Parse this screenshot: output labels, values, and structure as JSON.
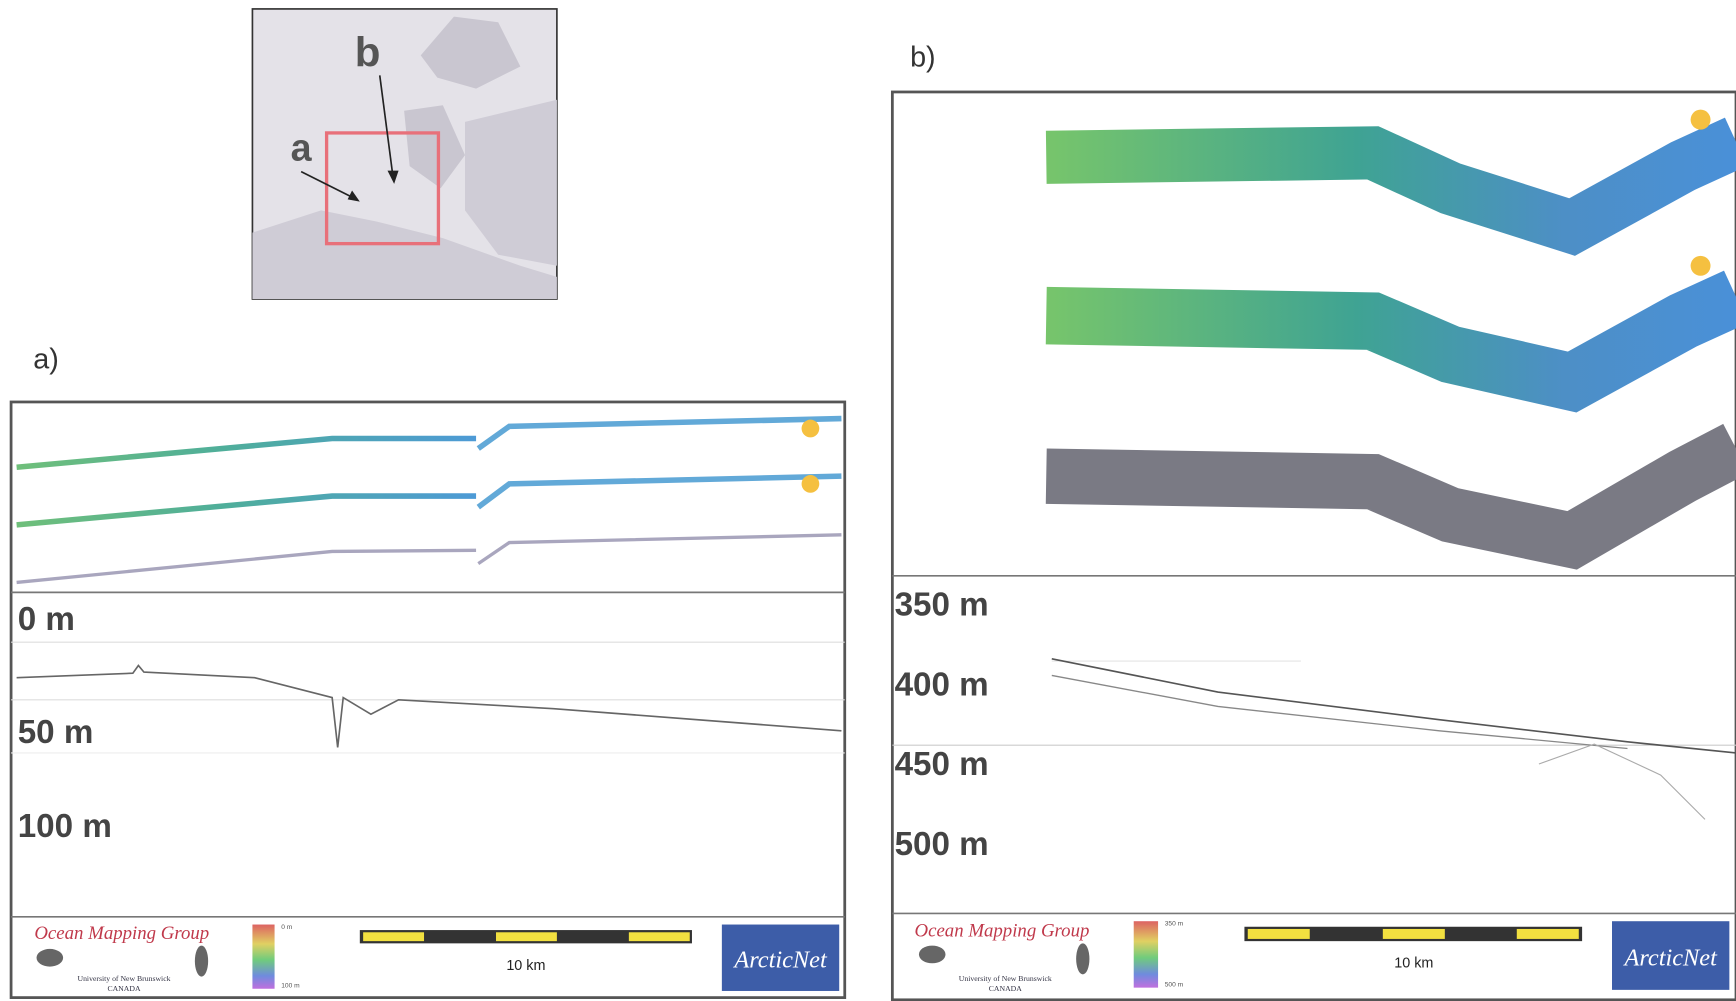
{
  "inset_map": {
    "labels": [
      "a",
      "b"
    ]
  },
  "panels": [
    {
      "label": "a)",
      "depth_labels": [
        "0 m",
        "50 m",
        "100 m"
      ],
      "footer": {
        "group": "Ocean Mapping Group",
        "university": "University of New Brunswick",
        "country": "CANADA",
        "colorbar": [
          "0 m",
          "100 m"
        ],
        "scale": "10 km",
        "logo": "ArcticNet"
      }
    },
    {
      "label": "b)",
      "depth_labels": [
        "350 m",
        "400 m",
        "450 m",
        "500 m"
      ],
      "footer": {
        "group": "Ocean Mapping Group",
        "university": "University of New Brunswick",
        "country": "CANADA",
        "colorbar": [
          "350 m",
          "500 m"
        ],
        "scale": "10 km",
        "logo": "ArcticNet"
      }
    }
  ]
}
